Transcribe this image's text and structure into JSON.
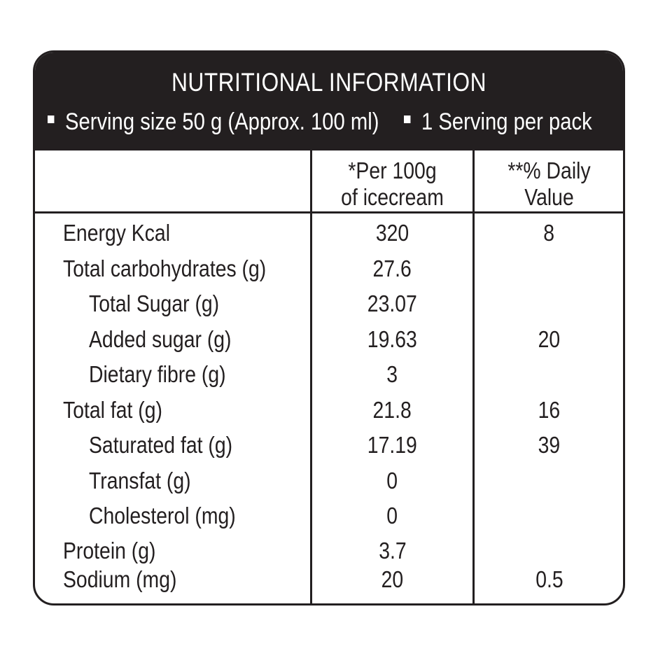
{
  "header": {
    "title": "NUTRITIONAL INFORMATION",
    "serving_size": "Serving size 50 g (Approx. 100 ml)",
    "servings_per_pack": "1 Serving per pack"
  },
  "columns": {
    "per_100g_line1": "*Per 100g",
    "per_100g_line2": "of icecream",
    "daily_value_line1": "**% Daily",
    "daily_value_line2": "Value"
  },
  "rows": [
    {
      "label": "Energy Kcal",
      "per_100g": "320",
      "daily_value": "8"
    },
    {
      "label": "Total carbohydrates (g)",
      "per_100g": "27.6",
      "daily_value": ""
    },
    {
      "label": "Total Sugar (g)",
      "per_100g": "23.07",
      "daily_value": ""
    },
    {
      "label": "Added sugar (g)",
      "per_100g": "19.63",
      "daily_value": "20"
    },
    {
      "label": "Dietary fibre (g)",
      "per_100g": "3",
      "daily_value": ""
    },
    {
      "label": "Total fat (g)",
      "per_100g": "21.8",
      "daily_value": "16"
    },
    {
      "label": "Saturated fat (g)",
      "per_100g": "17.19",
      "daily_value": "39"
    },
    {
      "label": "Transfat (g)",
      "per_100g": "0",
      "daily_value": ""
    },
    {
      "label": "Cholesterol (mg)",
      "per_100g": "0",
      "daily_value": ""
    },
    {
      "label": "Protein (g)",
      "per_100g": "3.7",
      "daily_value": ""
    },
    {
      "label": "Sodium (mg)",
      "per_100g": "20",
      "daily_value": "0.5"
    }
  ],
  "colors": {
    "ink": "#231f20",
    "background": "#ffffff"
  }
}
